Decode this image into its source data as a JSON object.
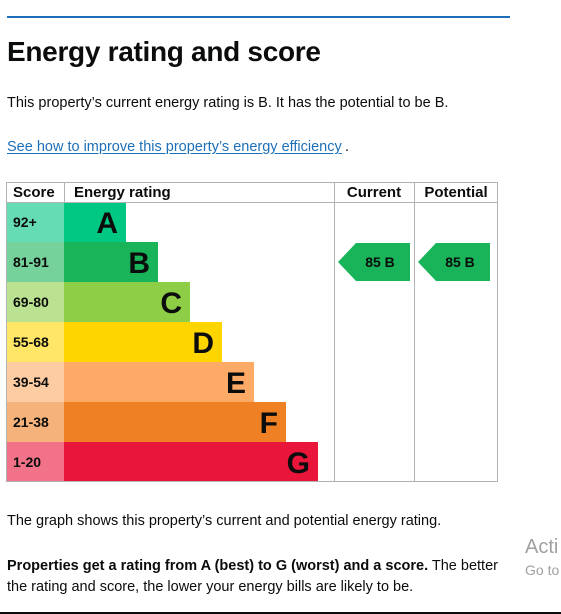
{
  "page": {
    "title": "Energy rating and score",
    "lead": "This property’s current energy rating is B. It has the potential to be B.",
    "improve_link": "See how to improve this property’s energy efficiency",
    "link_period": ".",
    "caption": "The graph shows this property’s current and potential energy rating.",
    "explain_bold": "Properties get a rating from A (best) to G (worst) and a score.",
    "explain_rest": " The better the rating and score, the lower your energy bills are likely to be."
  },
  "watermark": {
    "line1": "Acti",
    "line2": "Go to"
  },
  "chart_data": {
    "type": "table",
    "headers": {
      "score": "Score",
      "rating": "Energy rating",
      "current": "Current",
      "potential": "Potential"
    },
    "bands": [
      {
        "letter": "A",
        "score": "92+",
        "color": "#00c781",
        "score_bg": "#66dcb4"
      },
      {
        "letter": "B",
        "score": "81-91",
        "color": "#19b459",
        "score_bg": "#75d29b"
      },
      {
        "letter": "C",
        "score": "69-80",
        "color": "#8dce46",
        "score_bg": "#bbe290"
      },
      {
        "letter": "D",
        "score": "55-68",
        "color": "#ffd500",
        "score_bg": "#ffe666"
      },
      {
        "letter": "E",
        "score": "39-54",
        "color": "#fcaa65",
        "score_bg": "#fdcca3"
      },
      {
        "letter": "F",
        "score": "21-38",
        "color": "#ef8023",
        "score_bg": "#f5b37b"
      },
      {
        "letter": "G",
        "score": "1-20",
        "color": "#e9153b",
        "score_bg": "#f27389"
      }
    ],
    "current": {
      "score": 85,
      "band": "B",
      "label": "85 B"
    },
    "potential": {
      "score": 85,
      "band": "B",
      "label": "85 B"
    }
  }
}
